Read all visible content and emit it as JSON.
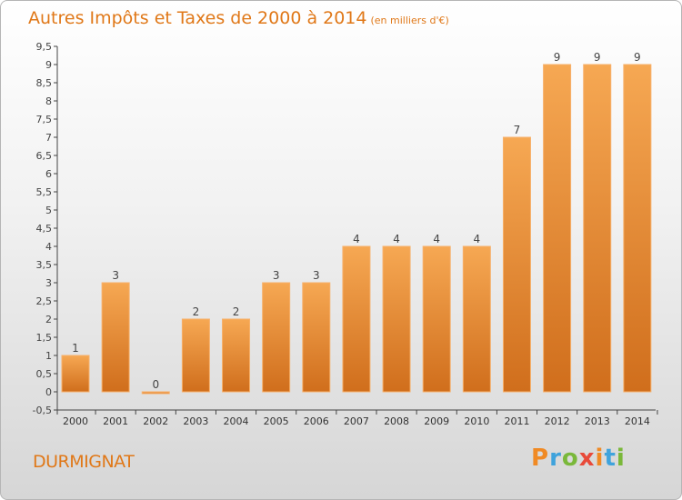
{
  "chart_data": {
    "type": "bar",
    "title": "Autres Impôts et Taxes de 2000 à 2014",
    "subtitle": "(en milliers d'€)",
    "categories": [
      "2000",
      "2001",
      "2002",
      "2003",
      "2004",
      "2005",
      "2006",
      "2007",
      "2008",
      "2009",
      "2010",
      "2011",
      "2012",
      "2013",
      "2014"
    ],
    "values": [
      1,
      3,
      0,
      2,
      2,
      3,
      3,
      4,
      4,
      4,
      4,
      7,
      9,
      9,
      9
    ],
    "value_labels": [
      "1",
      "3",
      "0",
      "2",
      "2",
      "3",
      "3",
      "4",
      "4",
      "4",
      "4",
      "7",
      "9",
      "9",
      "9"
    ],
    "yticks": [
      "-0,5",
      "0",
      "0,5",
      "1",
      "1,5",
      "2",
      "2,5",
      "3",
      "3,5",
      "4",
      "4,5",
      "5",
      "5,5",
      "6",
      "6,5",
      "7",
      "7,5",
      "8",
      "8,5",
      "9",
      "9,5"
    ],
    "ylim": [
      -0.5,
      9.5
    ],
    "xlabel": "",
    "ylabel": "",
    "grid": false,
    "bar_color": "#f0a048"
  },
  "footer": {
    "location": "DURMIGNAT",
    "brand_letters": [
      "P",
      "r",
      "o",
      "x",
      "i",
      "t",
      "i"
    ],
    "brand_colors": [
      "#f08a24",
      "#3fa3dc",
      "#7ab83a",
      "#e84a3a",
      "#f08a24",
      "#3fa3dc",
      "#7ab83a"
    ]
  }
}
